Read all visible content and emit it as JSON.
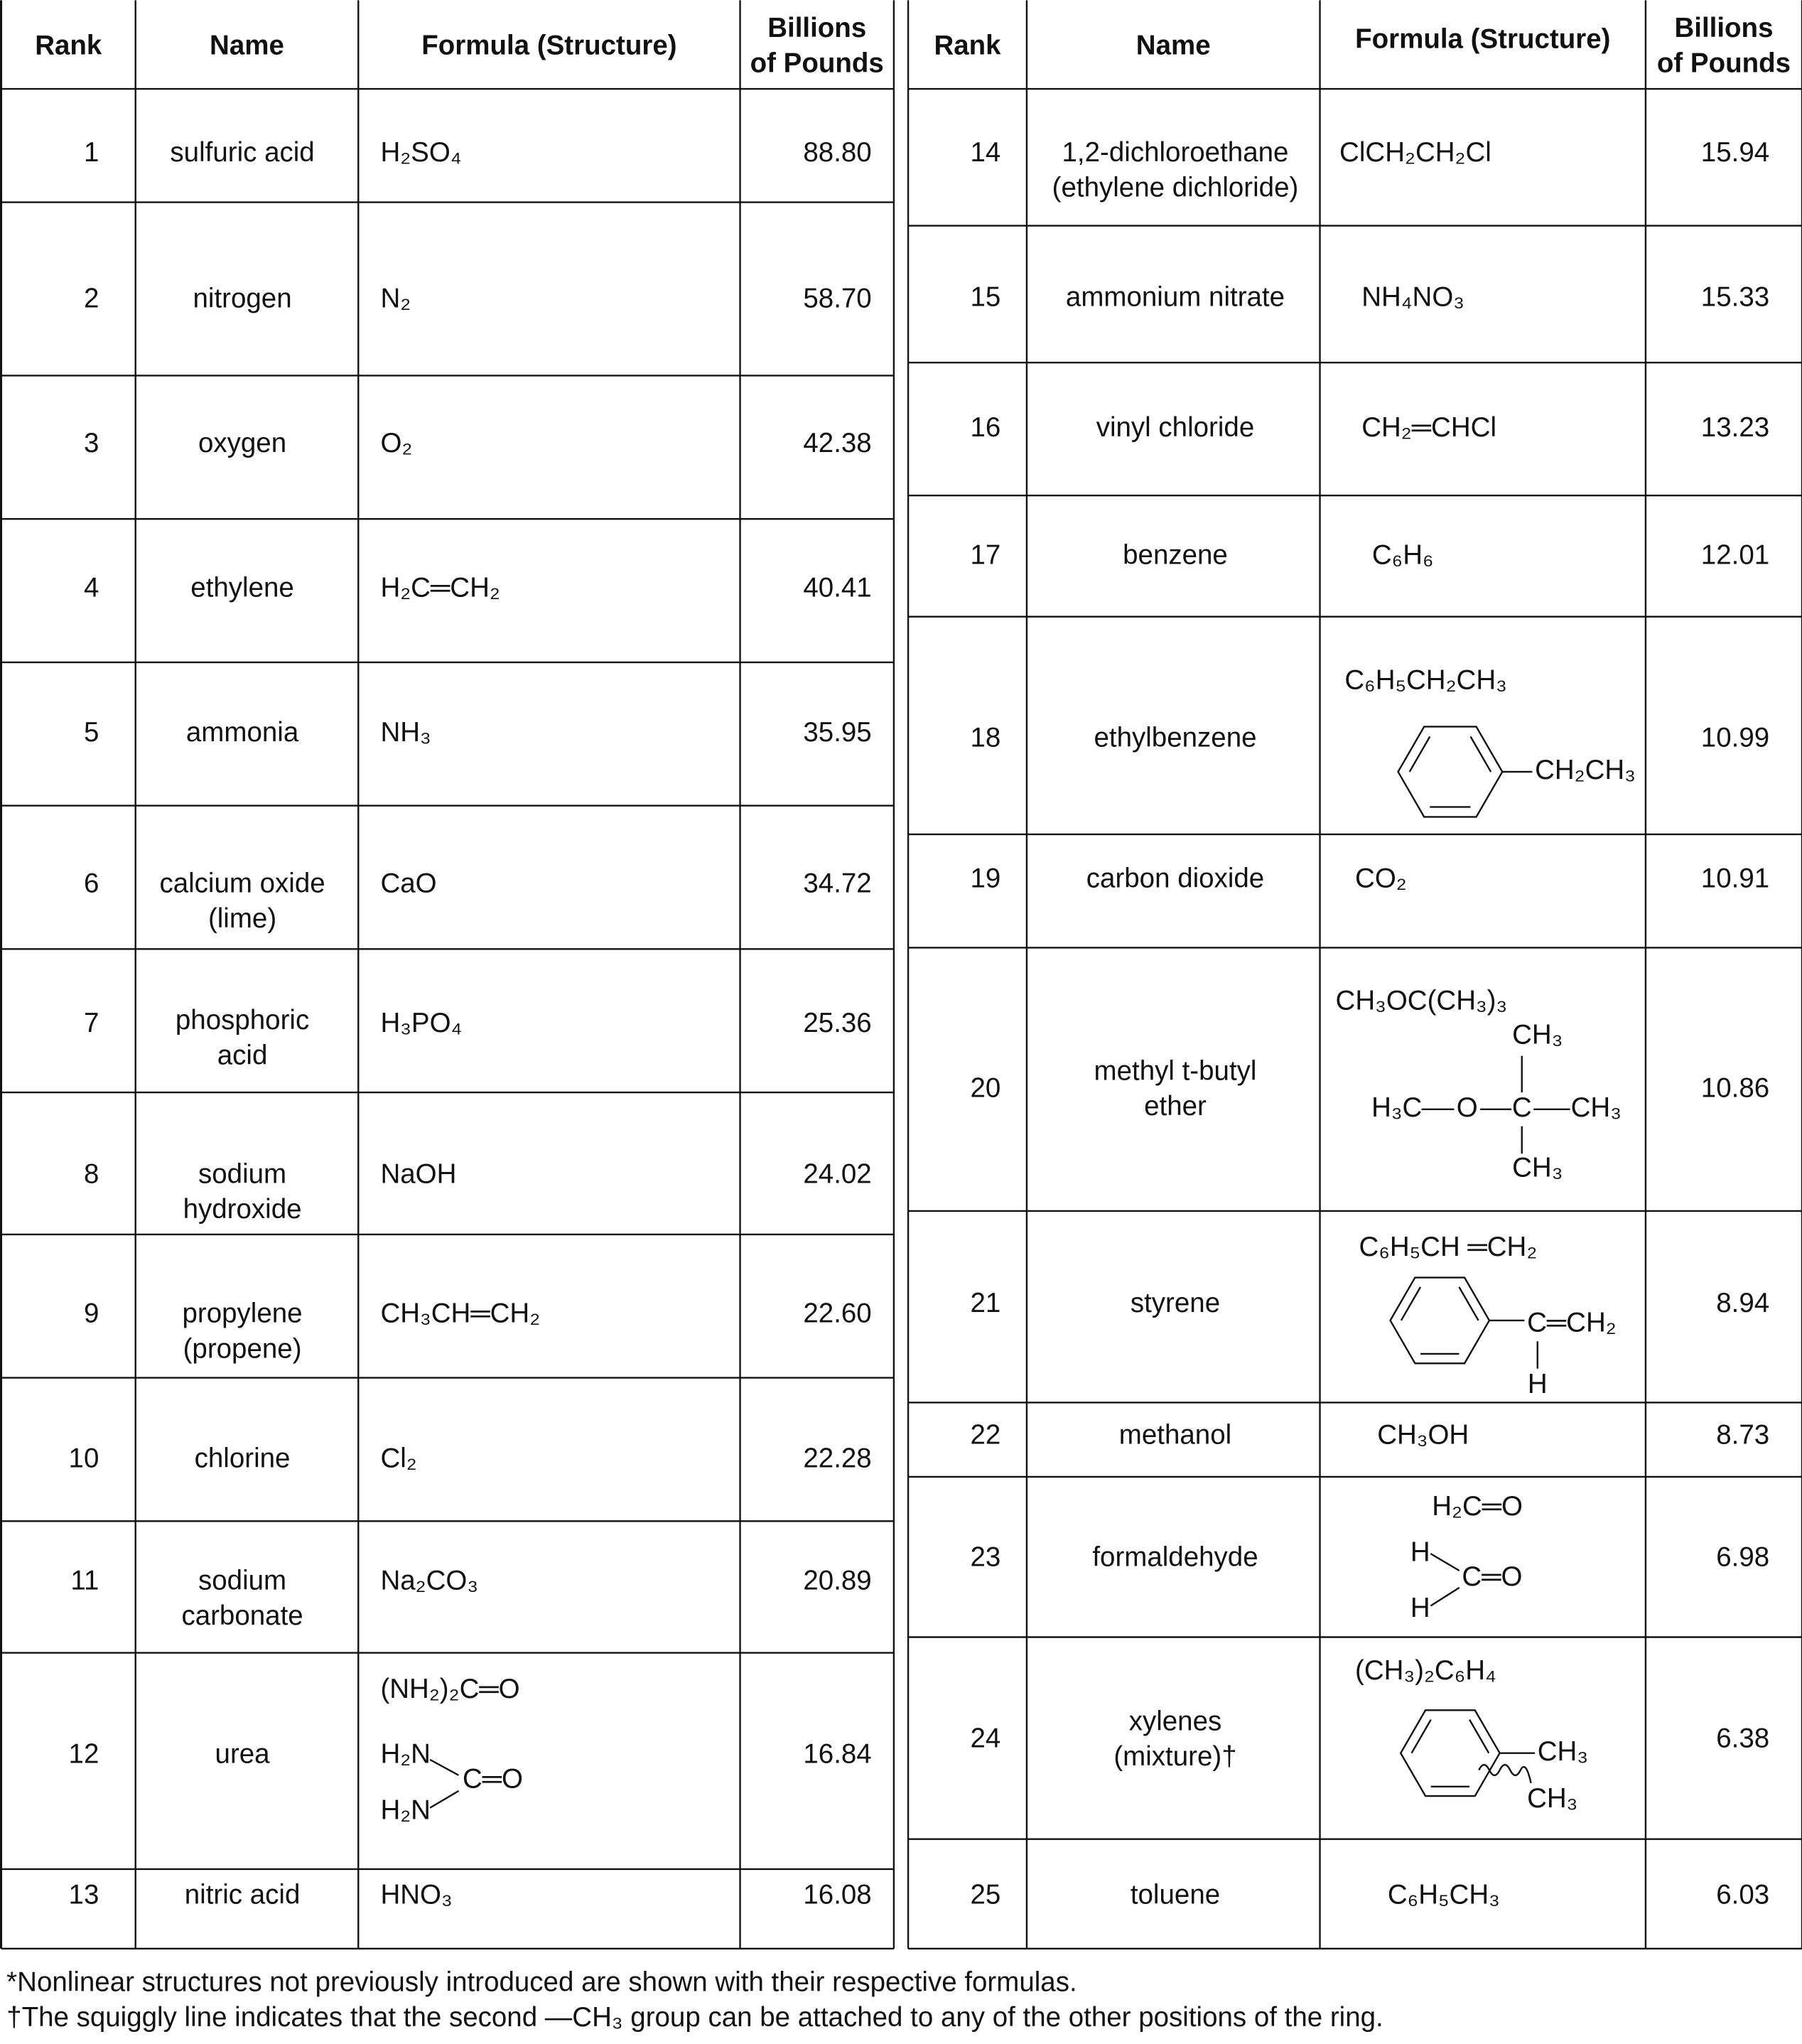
{
  "headers": [
    [
      "Rank"
    ],
    [
      "Name"
    ],
    [
      "Formula (Structure)"
    ],
    [
      "Billions",
      "of Pounds"
    ]
  ],
  "rows": [
    {
      "rank": 1,
      "name": [
        "sulfuric acid"
      ],
      "formula": "H₂SO₄",
      "billions": "88.80"
    },
    {
      "rank": 2,
      "name": [
        "nitrogen"
      ],
      "formula": "N₂",
      "billions": "58.70"
    },
    {
      "rank": 3,
      "name": [
        "oxygen"
      ],
      "formula": "O₂",
      "billions": "42.38"
    },
    {
      "rank": 4,
      "name": [
        "ethylene"
      ],
      "formula": "H₂C═CH₂",
      "billions": "40.41"
    },
    {
      "rank": 5,
      "name": [
        "ammonia"
      ],
      "formula": "NH₃",
      "billions": "35.95"
    },
    {
      "rank": 6,
      "name": [
        "calcium oxide",
        "(lime)"
      ],
      "formula": "CaO",
      "billions": "34.72"
    },
    {
      "rank": 7,
      "name": [
        "phosphoric",
        "acid"
      ],
      "formula": "H₃PO₄",
      "billions": "25.36"
    },
    {
      "rank": 8,
      "name": [
        "sodium",
        "hydroxide"
      ],
      "formula": "NaOH",
      "billions": "24.02"
    },
    {
      "rank": 9,
      "name": [
        "propylene",
        "(propene)"
      ],
      "formula": "CH₃CH═CH₂",
      "billions": "22.60"
    },
    {
      "rank": 10,
      "name": [
        "chlorine"
      ],
      "formula": "Cl₂",
      "billions": "22.28"
    },
    {
      "rank": 11,
      "name": [
        "sodium",
        "carbonate"
      ],
      "formula": "Na₂CO₃",
      "billions": "20.89"
    },
    {
      "rank": 12,
      "name": [
        "urea"
      ],
      "formula": "(NH₂)₂C═O",
      "structure": [
        "H₂N",
        "H₂N",
        "C═O"
      ],
      "billions": "16.84"
    },
    {
      "rank": 13,
      "name": [
        "nitric acid"
      ],
      "formula": "HNO₃",
      "billions": "16.08"
    },
    {
      "rank": 14,
      "name": [
        "1,2-dichloroethane",
        "(ethylene dichloride)"
      ],
      "formula": "ClCH₂CH₂Cl",
      "billions": "15.94"
    },
    {
      "rank": 15,
      "name": [
        "ammonium nitrate"
      ],
      "formula": "NH₄NO₃",
      "billions": "15.33"
    },
    {
      "rank": 16,
      "name": [
        "vinyl chloride"
      ],
      "formula": "CH₂═CHCl",
      "billions": "13.23"
    },
    {
      "rank": 17,
      "name": [
        "benzene"
      ],
      "formula": "C₆H₆",
      "billions": "12.01"
    },
    {
      "rank": 18,
      "name": [
        "ethylbenzene"
      ],
      "formula": "C₆H₅CH₂CH₃",
      "structure": [
        "CH₂CH₃"
      ],
      "billions": "10.99"
    },
    {
      "rank": 19,
      "name": [
        "carbon dioxide"
      ],
      "formula": "CO₂",
      "billions": "10.91"
    },
    {
      "rank": 20,
      "name": [
        "methyl t-butyl",
        "ether"
      ],
      "formula": "CH₃OC(CH₃)₃",
      "structure": [
        "CH₃",
        "H₃C",
        "O",
        "C",
        "CH₃",
        "CH₃"
      ],
      "billions": "10.86"
    },
    {
      "rank": 21,
      "name": [
        "styrene"
      ],
      "formula": "C₆H₅CH ═CH₂",
      "structure": [
        "C═CH₂",
        "H"
      ],
      "billions": "8.94"
    },
    {
      "rank": 22,
      "name": [
        "methanol"
      ],
      "formula": "CH₃OH",
      "billions": "8.73"
    },
    {
      "rank": 23,
      "name": [
        "formaldehyde"
      ],
      "formula": "H₂C═O",
      "structure": [
        "H",
        "H",
        "C═O"
      ],
      "billions": "6.98"
    },
    {
      "rank": 24,
      "name": [
        "xylenes",
        "(mixture)†"
      ],
      "formula": "(CH₃)₂C₆H₄",
      "structure": [
        "CH₃",
        "CH₃"
      ],
      "billions": "6.38"
    },
    {
      "rank": 25,
      "name": [
        "toluene"
      ],
      "formula": "C₆H₅CH₃",
      "billions": "6.03"
    }
  ],
  "footnotes": [
    "*Nonlinear structures not previously introduced are shown with their respective formulas.",
    "†The squiggly line indicates that the second —CH₃ group can be attached to any of the other positions of the ring."
  ]
}
